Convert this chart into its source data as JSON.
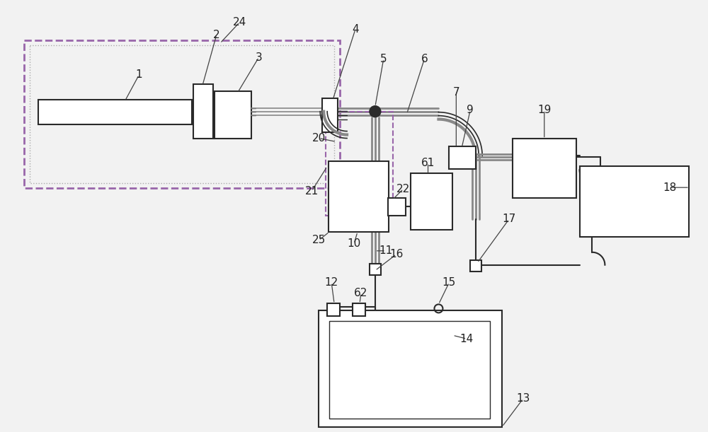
{
  "bg_color": "#f2f2f2",
  "line_color": "#2a2a2a",
  "dashed_purple": "#9966aa",
  "dashed_gray": "#aaaaaa",
  "pipe_gray": "#888888",
  "white": "#ffffff",
  "label_color": "#222222",
  "figsize": [
    10.0,
    6.11
  ],
  "dpi": 100
}
